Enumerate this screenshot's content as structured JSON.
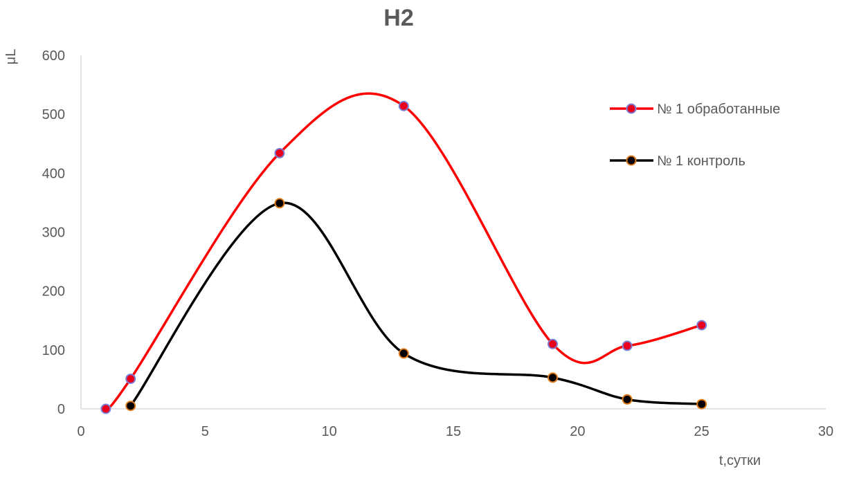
{
  "chart_data": {
    "type": "scatter",
    "title": "H2",
    "xlabel": "t,сутки",
    "ylabel": "μL",
    "xlim": [
      0,
      30
    ],
    "ylim": [
      0,
      600
    ],
    "x_ticks": [
      "0",
      "5",
      "10",
      "15",
      "20",
      "25",
      "30"
    ],
    "y_ticks": [
      "0",
      "100",
      "200",
      "300",
      "400",
      "500",
      "600"
    ],
    "grid": false,
    "legend_position": "right",
    "series": [
      {
        "name": "№ 1 обработанные",
        "line_color": "#ff0000",
        "marker_fill": "#e8001c",
        "marker_edge": "#7b7fd6",
        "x": [
          1,
          2,
          8,
          13,
          19,
          22,
          25
        ],
        "y": [
          0,
          51,
          434,
          514,
          110,
          107,
          142
        ]
      },
      {
        "name": "№ 1 контроль",
        "line_color": "#000000",
        "marker_fill": "#000000",
        "marker_edge": "#e07b1a",
        "x": [
          2,
          8,
          13,
          19,
          22,
          25
        ],
        "y": [
          5,
          349,
          94,
          53,
          16,
          8
        ]
      }
    ]
  }
}
